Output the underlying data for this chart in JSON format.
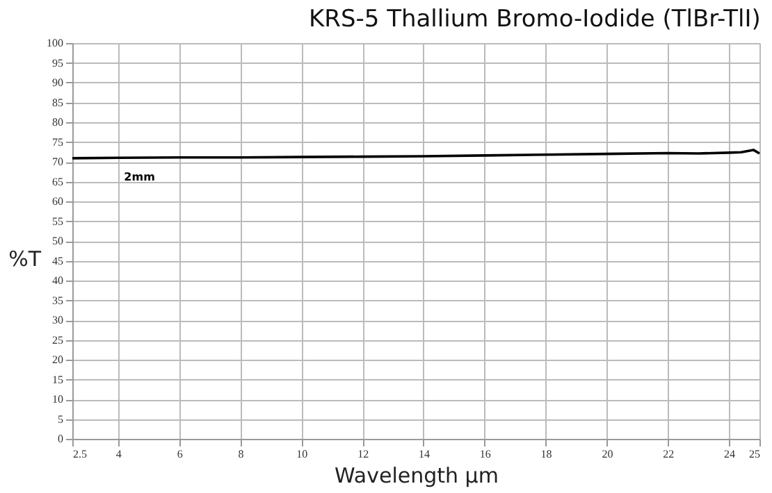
{
  "chart_data": {
    "type": "line",
    "title": "KRS-5 Thallium Bromo-Iodide (TlBr-TlI)",
    "xlabel": "Wavelength µm",
    "ylabel": "%T",
    "x": [
      2.5,
      4,
      6,
      8,
      10,
      12,
      14,
      16,
      18,
      20,
      22,
      23,
      24,
      24.4,
      24.8,
      25
    ],
    "series": [
      {
        "color": "#000000",
        "values": [
          70.9,
          71.0,
          71.1,
          71.1,
          71.2,
          71.3,
          71.4,
          71.6,
          71.8,
          72.0,
          72.2,
          72.1,
          72.3,
          72.4,
          73.0,
          72.1
        ]
      }
    ],
    "annotations": [
      {
        "text": "2mm",
        "x": 4.7,
        "y": 70.9
      }
    ],
    "xlim": [
      2.5,
      25
    ],
    "xticks": [
      2.5,
      4,
      6,
      8,
      10,
      12,
      14,
      16,
      18,
      20,
      22,
      24,
      25
    ],
    "ylim": [
      0,
      100
    ],
    "yticks": [
      0,
      5,
      10,
      15,
      20,
      25,
      30,
      35,
      40,
      45,
      50,
      55,
      60,
      65,
      70,
      75,
      80,
      85,
      90,
      95,
      100
    ],
    "grid": true,
    "line_style": "solid",
    "marker": "none"
  }
}
